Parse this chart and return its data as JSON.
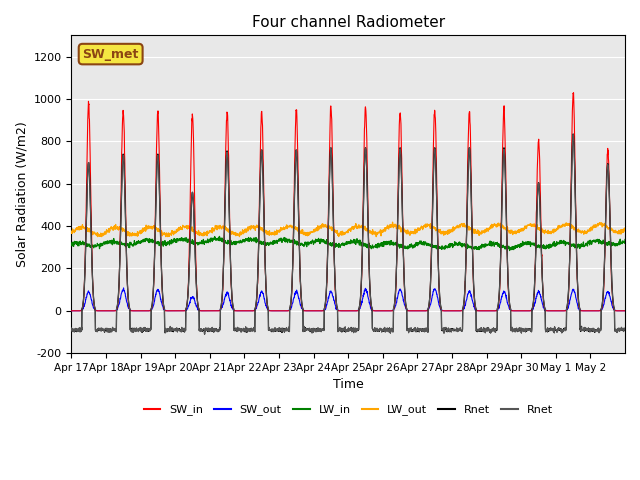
{
  "title": "Four channel Radiometer",
  "ylabel": "Solar Radiation (W/m2)",
  "xlabel": "Time",
  "ylim": [
    -200,
    1300
  ],
  "yticks": [
    -200,
    0,
    200,
    400,
    600,
    800,
    1000,
    1200
  ],
  "x_tick_labels": [
    "Apr 17",
    "Apr 18",
    "Apr 19",
    "Apr 20",
    "Apr 21",
    "Apr 22",
    "Apr 23",
    "Apr 24",
    "Apr 25",
    "Apr 26",
    "Apr 27",
    "Apr 28",
    "Apr 29",
    "Apr 30",
    "May 1",
    "May 2"
  ],
  "x_tick_positions": [
    0,
    1,
    2,
    3,
    4,
    5,
    6,
    7,
    8,
    9,
    10,
    11,
    12,
    13,
    14,
    15
  ],
  "bg_color": "#e8e8e8",
  "legend_entries": [
    "SW_in",
    "SW_out",
    "LW_in",
    "LW_out",
    "Rnet",
    "Rnet"
  ],
  "legend_colors": [
    "red",
    "blue",
    "green",
    "orange",
    "black",
    "#555555"
  ],
  "annotation_text": "SW_met",
  "annotation_bg": "#f5e642",
  "annotation_border": "#8B4513",
  "num_days": 16,
  "n_points_per_day": 144,
  "sw_in_peaks": [
    975,
    940,
    940,
    925,
    940,
    940,
    955,
    960,
    960,
    940,
    950,
    940,
    950,
    805,
    1030,
    760
  ],
  "sw_out_peaks": [
    90,
    100,
    100,
    65,
    85,
    90,
    90,
    90,
    100,
    100,
    105,
    90,
    90,
    90,
    100,
    90
  ],
  "rnet_peaks": [
    700,
    740,
    740,
    560,
    755,
    760,
    760,
    770,
    770,
    770,
    770,
    770,
    770,
    605,
    835,
    695
  ]
}
